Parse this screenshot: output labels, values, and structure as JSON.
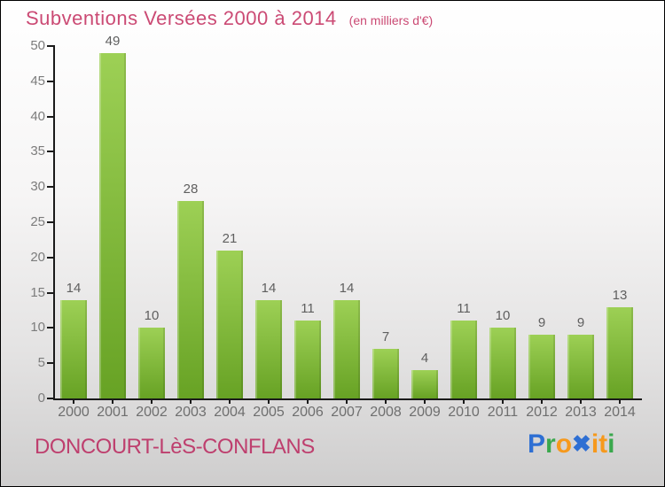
{
  "header": {
    "title": "Subventions Versées 2000 à 2014",
    "subtitle": "(en milliers d'€)"
  },
  "chart_data": {
    "type": "bar",
    "title": "Subventions Versées 2000 à 2014",
    "subtitle": "(en milliers d'€)",
    "categories": [
      "2000",
      "2001",
      "2002",
      "2003",
      "2004",
      "2005",
      "2006",
      "2007",
      "2008",
      "2009",
      "2010",
      "2011",
      "2012",
      "2013",
      "2014"
    ],
    "values": [
      14,
      49,
      10,
      28,
      21,
      14,
      11,
      14,
      7,
      4,
      11,
      10,
      9,
      9,
      13
    ],
    "xlabel": "",
    "ylabel": "",
    "ylim": [
      0,
      50
    ],
    "ytick_step": 5,
    "grid": false,
    "legend": false
  },
  "footer": {
    "city": "DONCOURT-LèS-CONFLANS",
    "brand": "Proxiti",
    "logo_letters": [
      {
        "char": "P",
        "color": "#2e6fd3"
      },
      {
        "char": "r",
        "color": "#3aa84d"
      },
      {
        "char": "o",
        "color": "#f6991c"
      },
      {
        "char": "✖",
        "color": "#2e6fd3"
      },
      {
        "char": "i",
        "color": "#f6991c"
      },
      {
        "char": "t",
        "color": "#f6991c"
      },
      {
        "char": "i",
        "color": "#3aa84d"
      }
    ]
  },
  "colors": {
    "title": "#cb4a74",
    "city": "#be3f6e",
    "bar_top": "#9dd055",
    "bar_bottom": "#67a224",
    "axis": "#1a1a1a",
    "tick_label": "#7c7c7c",
    "value_label": "#5f5f5f",
    "year_label": "#6f6f6f"
  }
}
